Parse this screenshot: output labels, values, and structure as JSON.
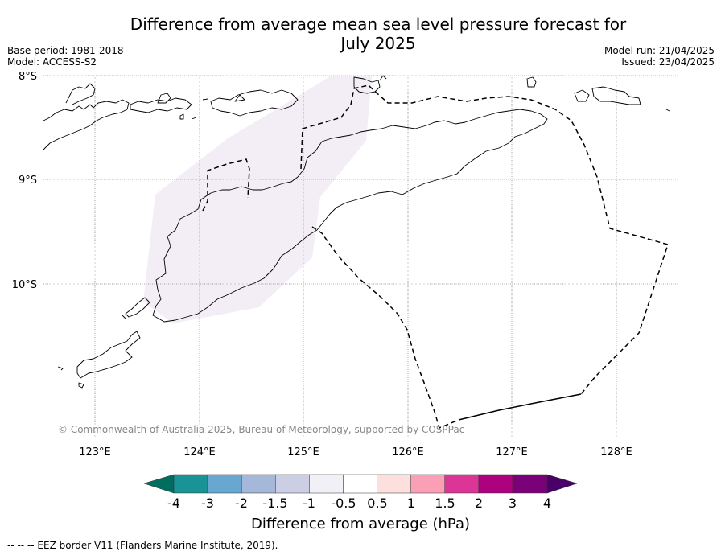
{
  "title": "Difference from average mean sea level pressure forecast for\nJuly 2025",
  "meta_left": [
    "Base period: 1981-2018",
    "Model: ACCESS-S2"
  ],
  "meta_right": [
    "Model run: 21/04/2025",
    "Issued: 23/04/2025"
  ],
  "credit": "© Commonwealth of Australia 2025, Bureau of Meteorology, supported by COSPPac",
  "footnote": "--  --  -- EEZ border V11 (Flanders Marine Institute, 2019).",
  "map": {
    "lat_labels": [
      "8°S",
      "9°S",
      "10°S"
    ],
    "lon_labels": [
      "123°E",
      "124°E",
      "125°E",
      "126°E",
      "127°E",
      "128°E"
    ],
    "lon_range": [
      122.5,
      128.6
    ],
    "lat_range": [
      -11.45,
      -8.0
    ],
    "anomaly_region": {
      "value_range": "-1 to -0.5",
      "color": "#f3eef5"
    }
  },
  "colorbar": {
    "title": "Difference from average (hPa)",
    "labels": [
      "-4",
      "-3",
      "-2",
      "-1.5",
      "-1",
      "-0.5",
      "0.5",
      "1",
      "1.5",
      "2",
      "3",
      "4"
    ],
    "colors": [
      "#006e5e",
      "#1a9396",
      "#68a7cf",
      "#a5b8da",
      "#cccfe4",
      "#f2f0f7",
      "#ffffff",
      "#fde0dd",
      "#fa9fb5",
      "#dd3497",
      "#ae017e",
      "#7a0177",
      "#49006a"
    ]
  }
}
